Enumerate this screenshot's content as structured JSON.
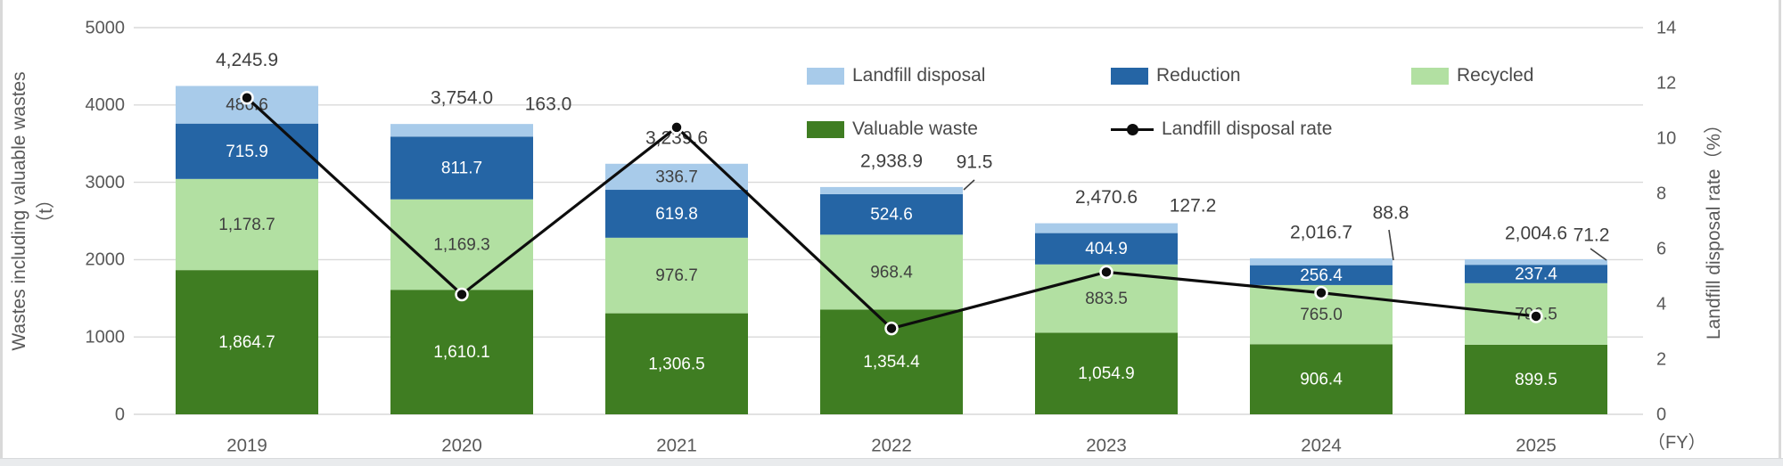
{
  "chart_data": {
    "type": "bar",
    "subtype": "stacked-bar-with-line",
    "title": "",
    "categories": [
      "2019",
      "2020",
      "2021",
      "2022",
      "2023",
      "2024",
      "2025"
    ],
    "series": [
      {
        "name": "Valuable waste",
        "color": "#3F7D22",
        "label_color": "#FFFFFF",
        "values": [
          1864.7,
          1610.1,
          1306.5,
          1354.4,
          1054.9,
          906.4,
          899.5
        ]
      },
      {
        "name": "Recycled",
        "color": "#B2E0A2",
        "label_color": "#3F3F3F",
        "values": [
          1178.7,
          1169.3,
          976.7,
          968.4,
          883.5,
          765.0,
          796.5
        ]
      },
      {
        "name": "Reduction",
        "color": "#2565A5",
        "label_color": "#FFFFFF",
        "values": [
          715.9,
          811.7,
          619.8,
          524.6,
          404.9,
          256.4,
          237.4
        ]
      },
      {
        "name": "Landfill disposal",
        "color": "#A8CBEA",
        "label_color": "#3F3F3F",
        "values": [
          486.6,
          163.0,
          336.7,
          91.5,
          127.2,
          88.8,
          71.2
        ]
      }
    ],
    "totals": [
      4245.9,
      3754.0,
      3239.6,
      2938.9,
      2470.6,
      2016.7,
      2004.6
    ],
    "line_series": {
      "name": "Landfill disposal rate",
      "color": "#0d0d0d",
      "values": [
        11.46,
        4.34,
        10.39,
        3.11,
        5.15,
        4.4,
        3.55
      ]
    },
    "left_axis": {
      "title_line1": "Wastes including valuable wastes",
      "title_line2": "（t）",
      "ticks": [
        5000,
        4000,
        3000,
        2000,
        1000,
        0
      ],
      "ylim": [
        0,
        5000
      ]
    },
    "right_axis": {
      "title": "Landfill disposal rate（%）",
      "ticks": [
        14,
        12,
        10,
        8,
        6,
        4,
        2,
        0
      ],
      "ylim": [
        0,
        14
      ]
    },
    "x_axis_unit": "（FY）",
    "grid": true,
    "grid_color": "#d9d9d9",
    "tick_color": "#595959",
    "data_label_outside_color": "#3f3f3f",
    "legend_position": "top-right-inside"
  },
  "legend": {
    "items": [
      {
        "label": "Landfill disposal",
        "marker": "square",
        "color": "#A8CBEA"
      },
      {
        "label": "Reduction",
        "marker": "square",
        "color": "#2565A5"
      },
      {
        "label": "Recycled",
        "marker": "square",
        "color": "#B2E0A2"
      },
      {
        "label": "Valuable waste",
        "marker": "square",
        "color": "#3F7D22"
      },
      {
        "label": "Landfill disposal rate",
        "marker": "line-dot",
        "color": "#0d0d0d"
      }
    ]
  }
}
